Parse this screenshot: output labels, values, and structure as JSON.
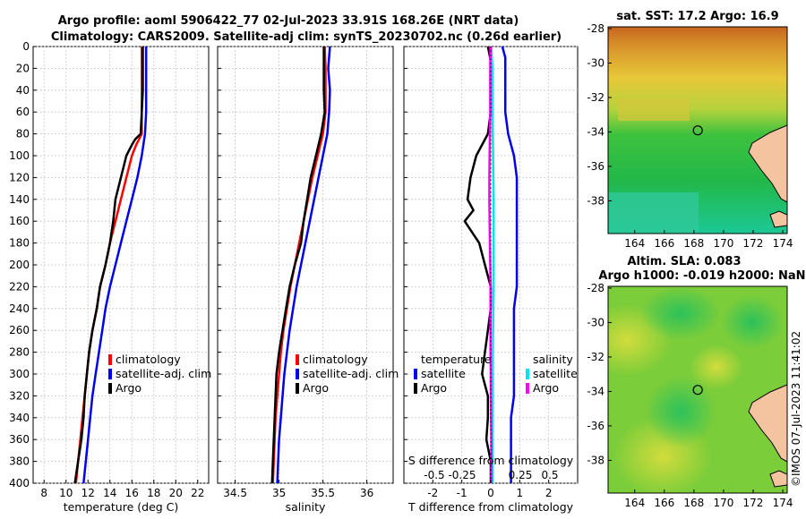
{
  "title_line1": "Argo profile: aoml 5906422_77 02-Jul-2023 33.91S 168.26E (NRT data)",
  "title_line2": "Climatology: CARS2009. Satellite-adj clim: synTS_20230702.nc (0.26d earlier)",
  "timestamp": "©IMOS 07-Jul-2023 11:41:02",
  "colors": {
    "climatology": "#ff0000",
    "satellite": "#0000ee",
    "argo": "#000000",
    "temperature_diff": "#ff00ff",
    "salinity_diff": "#00e5ee"
  },
  "chart_data": [
    {
      "name": "temperature-profile",
      "type": "line",
      "xlabel": "temperature (deg C)",
      "ylabel": "depth",
      "xlim": [
        7,
        23
      ],
      "ylim": [
        400,
        0
      ],
      "xticks": [
        8,
        10,
        12,
        14,
        16,
        18,
        20,
        22
      ],
      "yticks": [
        0,
        20,
        40,
        60,
        80,
        100,
        120,
        140,
        160,
        180,
        200,
        220,
        240,
        260,
        280,
        300,
        320,
        340,
        360,
        380,
        400
      ],
      "legend": [
        "climatology",
        "satellite-adj. clim",
        "Argo"
      ],
      "series": [
        {
          "name": "climatology",
          "depth": [
            0,
            20,
            40,
            60,
            80,
            90,
            100,
            120,
            140,
            160,
            180,
            200,
            220,
            240,
            260,
            280,
            300,
            320,
            340,
            360,
            380,
            400
          ],
          "values": [
            16.9,
            16.9,
            16.9,
            16.9,
            16.9,
            16.4,
            16.0,
            15.5,
            15.0,
            14.5,
            14.0,
            13.6,
            13.1,
            12.8,
            12.4,
            12.1,
            11.9,
            11.7,
            11.5,
            11.3,
            11.1,
            10.9
          ]
        },
        {
          "name": "satellite-adj. clim",
          "depth": [
            0,
            20,
            40,
            60,
            80,
            100,
            120,
            140,
            160,
            180,
            200,
            220,
            240,
            260,
            280,
            300,
            320,
            340,
            360,
            380,
            400
          ],
          "values": [
            17.3,
            17.3,
            17.3,
            17.3,
            17.2,
            16.9,
            16.5,
            16.0,
            15.5,
            15.0,
            14.5,
            14.0,
            13.6,
            13.3,
            13.0,
            12.7,
            12.4,
            12.2,
            12.0,
            11.8,
            11.6
          ]
        },
        {
          "name": "Argo",
          "depth": [
            0,
            20,
            40,
            60,
            80,
            85,
            90,
            100,
            120,
            140,
            160,
            180,
            200,
            220,
            240,
            260,
            280,
            300,
            320,
            340,
            360,
            380,
            400
          ],
          "values": [
            17.0,
            17.0,
            17.0,
            16.9,
            16.8,
            16.3,
            16.0,
            15.5,
            15.0,
            14.5,
            14.3,
            14.0,
            13.6,
            13.1,
            12.8,
            12.4,
            12.1,
            11.9,
            11.7,
            11.6,
            11.4,
            11.1,
            10.8
          ]
        }
      ]
    },
    {
      "name": "salinity-profile",
      "type": "line",
      "xlabel": "salinity",
      "ylabel": "depth",
      "xlim": [
        34.3,
        36.3
      ],
      "ylim": [
        400,
        0
      ],
      "xticks": [
        34.5,
        35,
        35.5,
        36
      ],
      "legend": [
        "climatology",
        "satellite-adj. clim",
        "Argo"
      ],
      "series": [
        {
          "name": "climatology",
          "depth": [
            0,
            20,
            40,
            60,
            80,
            100,
            120,
            140,
            160,
            180,
            200,
            220,
            240,
            260,
            280,
            300,
            320,
            340,
            360,
            380,
            400
          ],
          "values": [
            35.52,
            35.53,
            35.53,
            35.53,
            35.5,
            35.44,
            35.38,
            35.33,
            35.28,
            35.23,
            35.18,
            35.13,
            35.09,
            35.05,
            35.02,
            35.0,
            34.98,
            34.96,
            34.95,
            34.94,
            34.93
          ]
        },
        {
          "name": "satellite-adj. clim",
          "depth": [
            0,
            20,
            40,
            60,
            80,
            100,
            120,
            140,
            160,
            180,
            200,
            220,
            240,
            260,
            280,
            300,
            320,
            340,
            360,
            380,
            400
          ],
          "values": [
            35.58,
            35.56,
            35.58,
            35.57,
            35.55,
            35.5,
            35.45,
            35.4,
            35.35,
            35.3,
            35.25,
            35.2,
            35.16,
            35.12,
            35.09,
            35.06,
            35.04,
            35.02,
            35.0,
            34.99,
            34.98
          ]
        },
        {
          "name": "Argo",
          "depth": [
            0,
            20,
            40,
            60,
            80,
            100,
            120,
            140,
            160,
            180,
            200,
            220,
            240,
            260,
            280,
            300,
            320,
            340,
            360,
            380,
            400
          ],
          "values": [
            35.51,
            35.51,
            35.51,
            35.52,
            35.48,
            35.42,
            35.36,
            35.32,
            35.28,
            35.25,
            35.18,
            35.12,
            35.08,
            35.04,
            35.0,
            34.97,
            34.96,
            34.95,
            34.94,
            34.93,
            34.92
          ]
        }
      ]
    },
    {
      "name": "difference-profile",
      "type": "line",
      "xlabel": "T difference from climatology",
      "top_label": "S difference from climatology",
      "xlim": [
        -3,
        3
      ],
      "ylim": [
        400,
        0
      ],
      "xticks": [
        -2,
        -1,
        0,
        1,
        2
      ],
      "top_ticks": [
        "-0.5",
        "-0.25",
        "0.25",
        "0.5"
      ],
      "legend_temperature": [
        "temperature",
        "satellite",
        "Argo"
      ],
      "legend_salinity": [
        "salinity",
        "satellite",
        "Argo"
      ],
      "series": [
        {
          "name": "temperature satellite",
          "depth": [
            0,
            10,
            20,
            40,
            60,
            80,
            100,
            120,
            140,
            160,
            180,
            200,
            220,
            240,
            260,
            280,
            300,
            320,
            340,
            360,
            380,
            400
          ],
          "values": [
            0.4,
            0.5,
            0.5,
            0.5,
            0.5,
            0.6,
            0.8,
            0.9,
            0.9,
            0.9,
            0.9,
            0.9,
            0.9,
            0.8,
            0.8,
            0.8,
            0.8,
            0.8,
            0.7,
            0.7,
            0.7,
            0.7
          ]
        },
        {
          "name": "temperature Argo",
          "depth": [
            0,
            20,
            40,
            60,
            80,
            100,
            120,
            140,
            150,
            160,
            180,
            200,
            220,
            240,
            260,
            280,
            300,
            320,
            340,
            360,
            380,
            400
          ],
          "values": [
            -0.1,
            0.05,
            0.0,
            0.0,
            -0.1,
            -0.5,
            -0.7,
            -0.8,
            -0.6,
            -0.9,
            -0.4,
            -0.2,
            0.0,
            0.0,
            -0.1,
            -0.2,
            -0.3,
            -0.1,
            -0.1,
            -0.15,
            0.0,
            0.0
          ]
        },
        {
          "name": "salinity satellite",
          "depth": [
            0,
            20,
            40,
            60,
            80,
            100,
            120,
            140,
            160,
            180,
            200,
            220,
            240,
            260,
            280,
            300,
            320,
            340,
            360,
            380,
            400
          ],
          "values": [
            0.02,
            0.06,
            0.06,
            0.06,
            0.07,
            0.08,
            0.09,
            0.1,
            0.1,
            0.1,
            0.1,
            0.1,
            0.09,
            0.08,
            0.07,
            0.07,
            0.07,
            0.06,
            0.06,
            0.06,
            0.06
          ]
        },
        {
          "name": "salinity Argo",
          "depth": [
            0,
            20,
            40,
            60,
            80,
            100,
            120,
            140,
            160,
            180,
            200,
            220,
            240,
            260,
            280,
            300,
            320,
            340,
            360,
            380,
            400
          ],
          "values": [
            -0.01,
            -0.02,
            -0.02,
            -0.02,
            -0.03,
            -0.04,
            -0.05,
            -0.05,
            -0.04,
            -0.03,
            -0.02,
            -0.01,
            -0.01,
            -0.01,
            -0.01,
            0.0,
            0.0,
            0.01,
            0.02,
            0.02,
            0.02
          ]
        }
      ]
    },
    {
      "name": "sst-map",
      "type": "heatmap",
      "title": "sat. SST: 17.2 Argo: 16.9",
      "xticks": [
        164,
        166,
        168,
        170,
        172,
        174
      ],
      "yticks": [
        -28,
        -30,
        -32,
        -34,
        -36,
        -38
      ],
      "xlim": [
        162.2,
        174.3
      ],
      "ylim": [
        -39.9,
        -27.9
      ],
      "argo_position": [
        168.26,
        -33.91
      ]
    },
    {
      "name": "sla-map",
      "type": "heatmap",
      "title_line1": "Altim. SLA: 0.083",
      "title_line2": "Argo h1000: -0.019 h2000: NaN",
      "xticks": [
        164,
        166,
        168,
        170,
        172,
        174
      ],
      "yticks": [
        -28,
        -30,
        -32,
        -34,
        -36,
        -38
      ],
      "xlim": [
        162.2,
        174.3
      ],
      "ylim": [
        -39.9,
        -27.9
      ],
      "argo_position": [
        168.26,
        -33.91
      ]
    }
  ]
}
